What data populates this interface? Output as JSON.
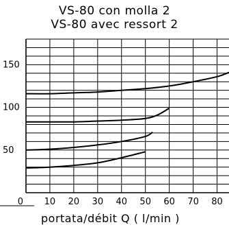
{
  "chart_data": {
    "type": "line",
    "title": "VS-80 con molla 2",
    "subtitle": "VS-80 avec ressort 2",
    "xlabel": "portata/débit Q ( l/min )",
    "ylabel": "",
    "xlim": [
      0,
      85
    ],
    "ylim": [
      0,
      180
    ],
    "x_ticks": [
      0,
      10,
      20,
      30,
      40,
      50,
      60,
      70,
      80
    ],
    "x_tick_labels": [
      "0",
      "10",
      "20",
      "30",
      "40",
      "50",
      "60",
      "70",
      "80"
    ],
    "y_ticks": [
      50,
      100,
      150
    ],
    "y_tick_labels": [
      "50",
      "100",
      "150"
    ],
    "grid": true,
    "series": [
      {
        "x": [
          0,
          10,
          20,
          30,
          40,
          50,
          60,
          70,
          80,
          85
        ],
        "y": [
          116,
          116,
          117,
          118,
          120,
          122,
          125,
          130,
          136,
          141
        ]
      },
      {
        "x": [
          0,
          10,
          20,
          30,
          40,
          50,
          55,
          60
        ],
        "y": [
          83,
          83,
          83,
          84,
          85,
          87,
          91,
          99
        ]
      },
      {
        "x": [
          0,
          10,
          20,
          30,
          40,
          50,
          53
        ],
        "y": [
          50,
          51,
          53,
          56,
          60,
          66,
          71
        ]
      },
      {
        "x": [
          0,
          10,
          20,
          30,
          40,
          50
        ],
        "y": [
          29,
          30,
          32,
          35,
          41,
          48
        ]
      }
    ]
  }
}
